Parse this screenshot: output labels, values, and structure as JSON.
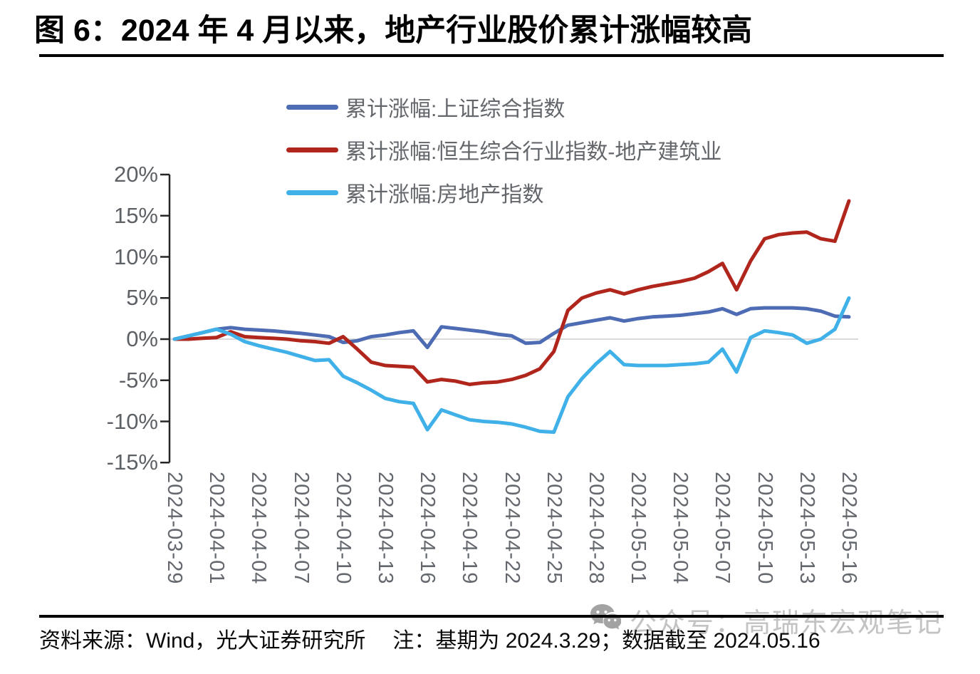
{
  "title": "图 6：2024 年 4 月以来，地产行业股价累计涨幅较高",
  "footer": {
    "source": "资料来源：Wind，光大证券研究所",
    "note": "注：基期为 2024.3.29；数据截至 2024.05.16"
  },
  "watermark": {
    "text": "公众号：高瑞东宏观笔记",
    "icon": "wechat-bubbles-icon"
  },
  "colors": {
    "axis": "#262626",
    "grid": "#d9d9d9",
    "title_text": "#000000",
    "legend_text": "#63676c",
    "tick_text": "#5d6166"
  },
  "chart_data": {
    "type": "line",
    "title": "图 6：2024 年 4 月以来，地产行业股价累计涨幅较高",
    "unit": "%",
    "baseline_gridline": 0,
    "grid": "horizontal line at 0% only",
    "legend_position": "top-center, stacked vertically",
    "ylim": [
      -15,
      20
    ],
    "y_tick_labels": [
      "20%",
      "15%",
      "10%",
      "5%",
      "0%",
      "-5%",
      "-10%",
      "-15%"
    ],
    "y_tick_values": [
      20,
      15,
      10,
      5,
      0,
      -5,
      -10,
      -15
    ],
    "x_tick_labels": [
      "2024-03-29",
      "2024-04-01",
      "2024-04-04",
      "2024-04-07",
      "2024-04-10",
      "2024-04-13",
      "2024-04-16",
      "2024-04-19",
      "2024-04-22",
      "2024-04-25",
      "2024-04-28",
      "2024-05-01",
      "2024-05-04",
      "2024-05-07",
      "2024-05-10",
      "2024-05-13",
      "2024-05-16"
    ],
    "x": [
      "2024-03-29",
      "2024-03-30",
      "2024-03-31",
      "2024-04-01",
      "2024-04-02",
      "2024-04-03",
      "2024-04-04",
      "2024-04-05",
      "2024-04-06",
      "2024-04-07",
      "2024-04-08",
      "2024-04-09",
      "2024-04-10",
      "2024-04-11",
      "2024-04-12",
      "2024-04-13",
      "2024-04-14",
      "2024-04-15",
      "2024-04-16",
      "2024-04-17",
      "2024-04-18",
      "2024-04-19",
      "2024-04-20",
      "2024-04-21",
      "2024-04-22",
      "2024-04-23",
      "2024-04-24",
      "2024-04-25",
      "2024-04-26",
      "2024-04-27",
      "2024-04-28",
      "2024-04-29",
      "2024-04-30",
      "2024-05-01",
      "2024-05-02",
      "2024-05-03",
      "2024-05-04",
      "2024-05-05",
      "2024-05-06",
      "2024-05-07",
      "2024-05-08",
      "2024-05-09",
      "2024-05-10",
      "2024-05-11",
      "2024-05-12",
      "2024-05-13",
      "2024-05-14",
      "2024-05-15",
      "2024-05-16"
    ],
    "series": [
      {
        "name": "累计涨幅:上证综合指数",
        "color": "#4d6cb3",
        "values": [
          0,
          0.4,
          0.8,
          1.2,
          1.4,
          1.2,
          1.1,
          1.0,
          0.85,
          0.7,
          0.5,
          0.3,
          -0.4,
          -0.2,
          0.3,
          0.5,
          0.8,
          1.0,
          -1.0,
          1.5,
          1.3,
          1.1,
          0.9,
          0.6,
          0.4,
          -0.5,
          -0.4,
          0.7,
          1.7,
          2.0,
          2.3,
          2.6,
          2.2,
          2.5,
          2.7,
          2.8,
          2.9,
          3.1,
          3.3,
          3.7,
          3.0,
          3.7,
          3.8,
          3.8,
          3.8,
          3.7,
          3.4,
          2.8,
          2.7
        ]
      },
      {
        "name": "累计涨幅:恒生综合行业指数-地产建筑业",
        "color": "#b1261c",
        "values": [
          0,
          0,
          0.1,
          0.2,
          0.9,
          0.3,
          0.2,
          0.1,
          0,
          -0.2,
          -0.3,
          -0.5,
          0.3,
          -1.2,
          -2.8,
          -3.2,
          -3.3,
          -3.4,
          -5.2,
          -4.9,
          -5.1,
          -5.5,
          -5.3,
          -5.2,
          -4.9,
          -4.4,
          -3.6,
          -1.5,
          3.5,
          5.0,
          5.6,
          6.0,
          5.5,
          6.0,
          6.4,
          6.7,
          7.0,
          7.4,
          8.2,
          9.2,
          6.0,
          9.5,
          12.2,
          12.7,
          12.9,
          13.0,
          12.2,
          11.9,
          16.8
        ]
      },
      {
        "name": "累计涨幅:房地产指数",
        "color": "#3fb0e8",
        "values": [
          0,
          0.4,
          0.8,
          1.2,
          0.6,
          -0.3,
          -0.8,
          -1.2,
          -1.6,
          -2.1,
          -2.6,
          -2.5,
          -4.5,
          -5.3,
          -6.2,
          -7.2,
          -7.6,
          -7.8,
          -11.0,
          -8.6,
          -9.2,
          -9.8,
          -10.0,
          -10.1,
          -10.3,
          -10.7,
          -11.2,
          -11.3,
          -7.0,
          -4.8,
          -3.0,
          -1.5,
          -3.1,
          -3.2,
          -3.2,
          -3.2,
          -3.1,
          -3.0,
          -2.8,
          -1.2,
          -4.0,
          0.2,
          1.0,
          0.8,
          0.5,
          -0.5,
          0.0,
          1.2,
          5.0
        ]
      }
    ]
  }
}
